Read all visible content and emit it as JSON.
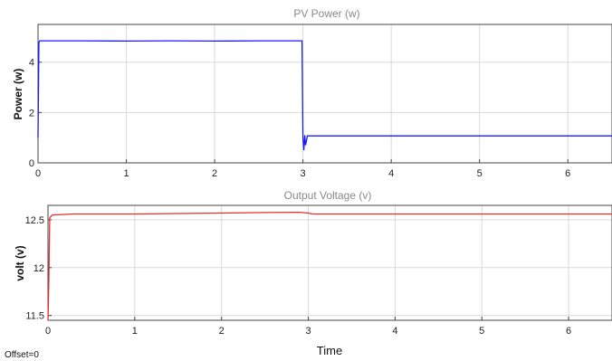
{
  "chart_data": [
    {
      "type": "line",
      "title": "PV Power (w)",
      "xlabel": "",
      "ylabel": "Power (w)",
      "xlim": [
        0,
        6.5
      ],
      "ylim": [
        0,
        5.5
      ],
      "xticks": [
        "0",
        "1",
        "2",
        "3",
        "4",
        "5",
        "6"
      ],
      "yticks": [
        "0",
        "2",
        "4"
      ],
      "grid": true,
      "series": [
        {
          "color": "#1a1aff",
          "x": [
            0,
            0.005,
            0.01,
            0.02,
            0.5,
            1.0,
            1.5,
            2.0,
            2.5,
            2.99,
            3.0,
            3.01,
            3.02,
            3.03,
            3.05,
            3.5,
            4.0,
            5.0,
            6.0,
            6.5
          ],
          "y": [
            1.0,
            3.0,
            4.8,
            4.85,
            4.85,
            4.84,
            4.85,
            4.84,
            4.85,
            4.85,
            1.0,
            0.5,
            1.1,
            0.7,
            1.07,
            1.07,
            1.07,
            1.07,
            1.07,
            1.07
          ]
        }
      ]
    },
    {
      "type": "line",
      "title": "Output Voltage (v)",
      "xlabel": "Time",
      "ylabel": "volt (v)",
      "xlim": [
        0,
        6.5
      ],
      "ylim": [
        11.45,
        12.65
      ],
      "xticks": [
        "0",
        "1",
        "2",
        "3",
        "4",
        "5",
        "6"
      ],
      "yticks": [
        "11.5",
        "12",
        "12.5"
      ],
      "grid": true,
      "series": [
        {
          "color": "#e03030",
          "x": [
            0,
            0.01,
            0.02,
            0.05,
            0.3,
            1.0,
            1.5,
            2.0,
            2.5,
            2.9,
            3.0,
            3.05,
            4.0,
            5.0,
            6.0,
            6.5
          ],
          "y": [
            11.45,
            11.9,
            12.52,
            12.55,
            12.56,
            12.56,
            12.565,
            12.57,
            12.575,
            12.578,
            12.57,
            12.56,
            12.56,
            12.56,
            12.56,
            12.56
          ]
        }
      ]
    }
  ],
  "footer": {
    "offset_text": "Offset=0"
  }
}
